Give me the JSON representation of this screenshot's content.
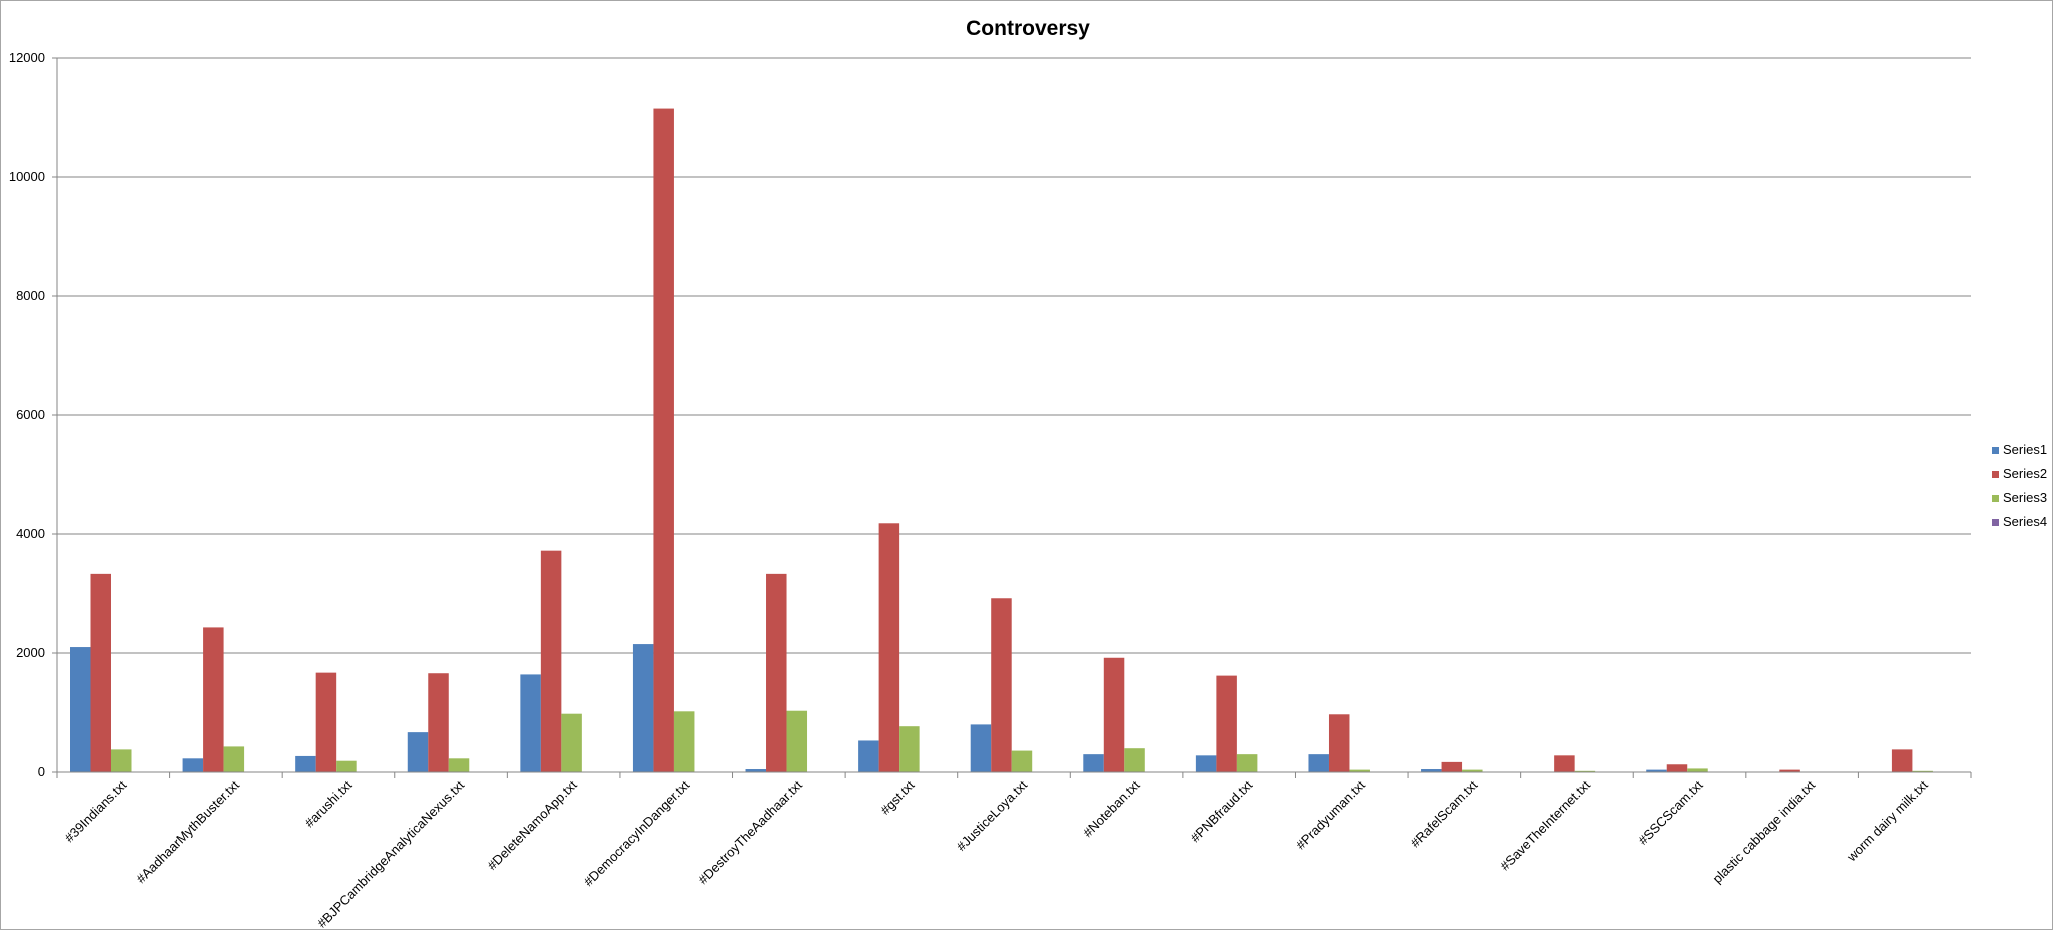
{
  "chart_data": {
    "type": "bar",
    "title": "Controversy",
    "xlabel": "",
    "ylabel": "",
    "ylim": [
      0,
      12000
    ],
    "yticks": [
      0,
      2000,
      4000,
      6000,
      8000,
      10000,
      12000
    ],
    "grid": true,
    "legend": "right",
    "categories": [
      "#39Indians.txt",
      "#AadhaarMythBuster.txt",
      "#arushi.txt",
      "#BJPCambridgeAnalyticaNexus.txt",
      "#DeleteNamoApp.txt",
      "#DemocracyInDanger.txt",
      "#DestroyTheAadhaar.txt",
      "#gst.txt",
      "#JusticeLoya.txt",
      "#Noteban.txt",
      "#PNBfraud.txt",
      "#Pradyuman.txt",
      "#RafelScam.txt",
      "#SaveTheInternet.txt",
      "#SSCScam.txt",
      "plastic cabbage india.txt",
      "worm dairy milk.txt"
    ],
    "series": [
      {
        "name": "Series1",
        "color": "#4f81bd",
        "values": [
          2100,
          230,
          270,
          670,
          1640,
          2150,
          50,
          530,
          800,
          300,
          280,
          300,
          50,
          0,
          40,
          0,
          0
        ]
      },
      {
        "name": "Series2",
        "color": "#c0504d",
        "values": [
          3330,
          2430,
          1670,
          1660,
          3720,
          11150,
          3330,
          4180,
          2920,
          1920,
          1620,
          970,
          170,
          280,
          130,
          40,
          380
        ]
      },
      {
        "name": "Series3",
        "color": "#9bbb59",
        "values": [
          380,
          430,
          190,
          230,
          980,
          1020,
          1030,
          770,
          360,
          400,
          300,
          40,
          40,
          20,
          60,
          0,
          20
        ]
      },
      {
        "name": "Series4",
        "color": "#8064a2",
        "values": [
          0,
          0,
          0,
          0,
          0,
          0,
          0,
          0,
          0,
          0,
          0,
          0,
          0,
          0,
          0,
          0,
          0
        ]
      }
    ]
  }
}
